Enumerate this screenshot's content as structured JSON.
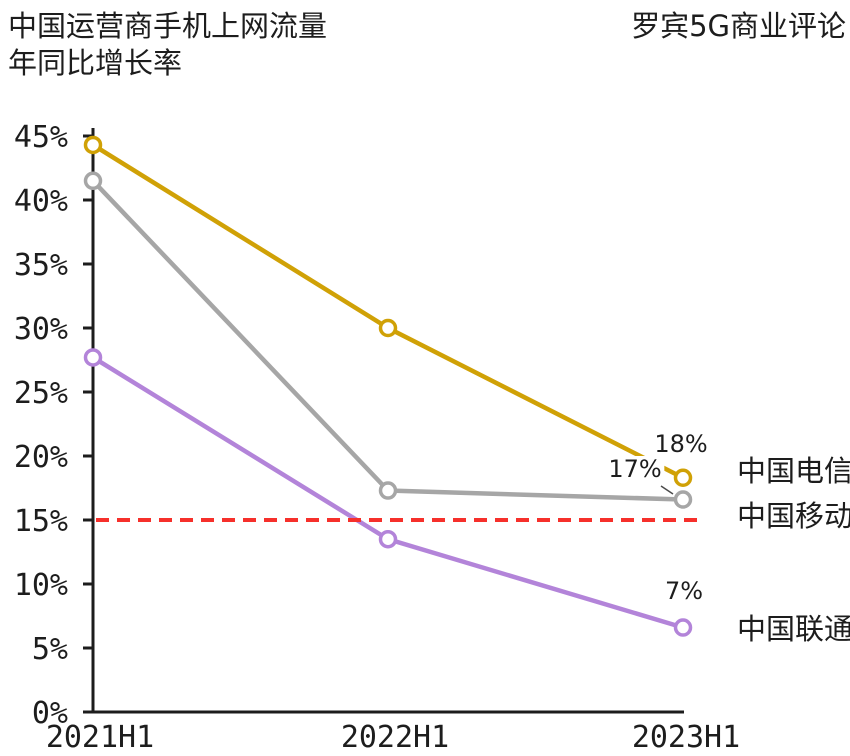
{
  "header": {
    "title_line1": "中国运营商手机上网流量",
    "title_line2": "年同比增长率",
    "brand": "罗宾5G商业评论"
  },
  "chart_data": {
    "type": "line",
    "title": "中国运营商手机上网流量年同比增长率",
    "categories": [
      "2021H1",
      "2022H1",
      "2023H1"
    ],
    "series": [
      {
        "name": "中国电信",
        "color": "#D0A106",
        "values": [
          44.3,
          30.0,
          18.3
        ],
        "end_label": "18%"
      },
      {
        "name": "中国移动",
        "color": "#A6A6A6",
        "values": [
          41.5,
          17.3,
          16.6
        ],
        "end_label": "17%"
      },
      {
        "name": "中国联通",
        "color": "#B384D9",
        "values": [
          27.7,
          13.5,
          6.6
        ],
        "end_label": "7%"
      }
    ],
    "reference_line": {
      "value": 15,
      "color": "#F6302B",
      "style": "dashed"
    },
    "ylim": [
      0,
      45
    ],
    "ytick_step": 5,
    "ytick_labels": [
      "0%",
      "5%",
      "10%",
      "15%",
      "20%",
      "25%",
      "30%",
      "35%",
      "40%",
      "45%"
    ],
    "xlabel": "",
    "ylabel": "",
    "grid": false,
    "legend_position": "right-of-line-ends",
    "axis_color": "#1d1d1d",
    "marker": "open-circle"
  }
}
